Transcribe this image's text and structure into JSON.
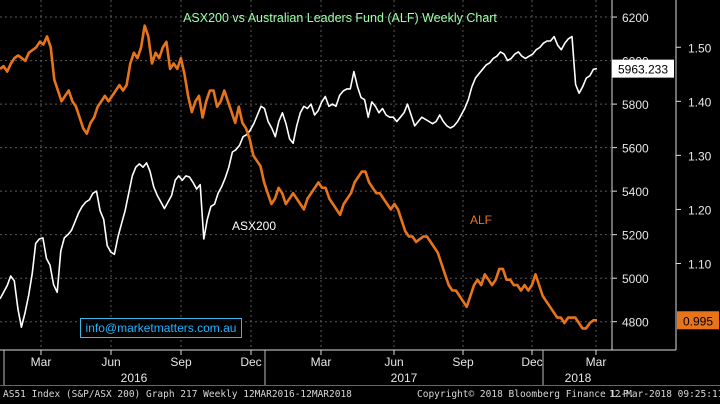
{
  "chart_data": {
    "type": "line",
    "title": "ASX200 vs Australian Leaders Fund (ALF) Weekly Chart",
    "x_tick_labels": [
      "Mar",
      "Jun",
      "Sep",
      "Dec",
      "Mar",
      "Jun",
      "Sep",
      "Dec",
      "Mar"
    ],
    "x_year_labels": [
      "2016",
      "2017",
      "2018"
    ],
    "left_axis": {
      "name": "ASX200",
      "ticks": [
        4800,
        5000,
        5200,
        5400,
        5600,
        5800,
        6000,
        6200
      ],
      "range": [
        4670,
        6260
      ]
    },
    "right_axis": {
      "name": "ALF",
      "ticks": [
        "1.10",
        "1.20",
        "1.30",
        "1.40",
        "1.50"
      ],
      "range": [
        0.94,
        1.58
      ]
    },
    "series": [
      {
        "name": "ASX200",
        "axis": "right-left-scale",
        "color": "#ffffff",
        "last_label": "5963.233",
        "values": [
          4905,
          4935,
          4965,
          5010,
          4988,
          4860,
          4775,
          4840,
          4920,
          5020,
          5160,
          5180,
          5185,
          5090,
          5060,
          4970,
          4935,
          5125,
          5185,
          5200,
          5220,
          5260,
          5300,
          5330,
          5350,
          5360,
          5390,
          5400,
          5310,
          5270,
          5150,
          5120,
          5110,
          5190,
          5250,
          5310,
          5390,
          5470,
          5510,
          5525,
          5510,
          5530,
          5490,
          5420,
          5380,
          5350,
          5320,
          5350,
          5380,
          5450,
          5470,
          5450,
          5470,
          5465,
          5440,
          5410,
          5430,
          5180,
          5270,
          5330,
          5340,
          5390,
          5420,
          5460,
          5510,
          5580,
          5590,
          5610,
          5650,
          5660,
          5680,
          5710,
          5750,
          5790,
          5780,
          5720,
          5690,
          5650,
          5720,
          5760,
          5710,
          5640,
          5620,
          5700,
          5760,
          5790,
          5780,
          5800,
          5750,
          5770,
          5810,
          5835,
          5790,
          5800,
          5790,
          5840,
          5860,
          5870,
          5870,
          5950,
          5880,
          5830,
          5820,
          5740,
          5810,
          5790,
          5760,
          5780,
          5750,
          5740,
          5740,
          5720,
          5740,
          5760,
          5800,
          5750,
          5700,
          5720,
          5740,
          5730,
          5720,
          5710,
          5720,
          5750,
          5720,
          5700,
          5690,
          5700,
          5720,
          5750,
          5780,
          5820,
          5880,
          5920,
          5940,
          5960,
          5980,
          5990,
          6010,
          6020,
          6040,
          6030,
          6000,
          6010,
          6030,
          6040,
          6020,
          6010,
          6020,
          6030,
          6050,
          6060,
          6080,
          6090,
          6090,
          6110,
          6070,
          6050,
          6080,
          6100,
          6110,
          5890,
          5850,
          5880,
          5920,
          5930,
          5960,
          5963
        ]
      },
      {
        "name": "ALF",
        "axis": "right",
        "color": "#e8741a",
        "last_label": "0.995",
        "values": [
          1.46,
          1.465,
          1.455,
          1.47,
          1.48,
          1.485,
          1.48,
          1.475,
          1.49,
          1.495,
          1.5,
          1.51,
          1.505,
          1.52,
          1.5,
          1.44,
          1.42,
          1.4,
          1.41,
          1.42,
          1.4,
          1.39,
          1.37,
          1.35,
          1.34,
          1.36,
          1.37,
          1.39,
          1.4,
          1.41,
          1.4,
          1.41,
          1.42,
          1.43,
          1.42,
          1.43,
          1.47,
          1.49,
          1.48,
          1.5,
          1.54,
          1.52,
          1.47,
          1.49,
          1.48,
          1.5,
          1.51,
          1.46,
          1.47,
          1.46,
          1.48,
          1.45,
          1.41,
          1.38,
          1.4,
          1.41,
          1.37,
          1.4,
          1.42,
          1.42,
          1.39,
          1.4,
          1.42,
          1.4,
          1.38,
          1.36,
          1.39,
          1.36,
          1.35,
          1.33,
          1.3,
          1.29,
          1.28,
          1.25,
          1.23,
          1.21,
          1.22,
          1.24,
          1.23,
          1.21,
          1.22,
          1.23,
          1.22,
          1.21,
          1.2,
          1.22,
          1.23,
          1.24,
          1.25,
          1.24,
          1.24,
          1.22,
          1.21,
          1.2,
          1.19,
          1.21,
          1.22,
          1.23,
          1.25,
          1.26,
          1.27,
          1.27,
          1.25,
          1.24,
          1.23,
          1.23,
          1.22,
          1.21,
          1.2,
          1.21,
          1.2,
          1.18,
          1.16,
          1.15,
          1.15,
          1.14,
          1.145,
          1.15,
          1.15,
          1.14,
          1.13,
          1.12,
          1.1,
          1.08,
          1.06,
          1.05,
          1.05,
          1.04,
          1.03,
          1.02,
          1.04,
          1.06,
          1.07,
          1.06,
          1.08,
          1.07,
          1.06,
          1.07,
          1.09,
          1.09,
          1.07,
          1.07,
          1.06,
          1.06,
          1.05,
          1.06,
          1.05,
          1.06,
          1.08,
          1.06,
          1.04,
          1.03,
          1.02,
          1.01,
          1.0,
          1.0,
          0.99,
          1.0,
          1.0,
          1.0,
          0.99,
          0.98,
          0.98,
          0.99,
          0.995,
          0.995
        ]
      }
    ],
    "annotations": [
      "ASX200",
      "ALF"
    ],
    "grid": true,
    "legend": "none"
  },
  "contact": "info@marketmatters.com.au",
  "footer": {
    "left": "AS51 Index (S&P/ASX 200) Graph 217  Weekly 12MAR2016-12MAR2018",
    "copyright": "Copyright© 2018 Bloomberg Finance L.P.",
    "timestamp": "12-Mar-2018 09:25:11"
  },
  "colors": {
    "asx": "#ffffff",
    "alf": "#e8741a",
    "title": "#9cffa6",
    "grid": "#5a5a5a",
    "contact": "#1fb4ff"
  }
}
